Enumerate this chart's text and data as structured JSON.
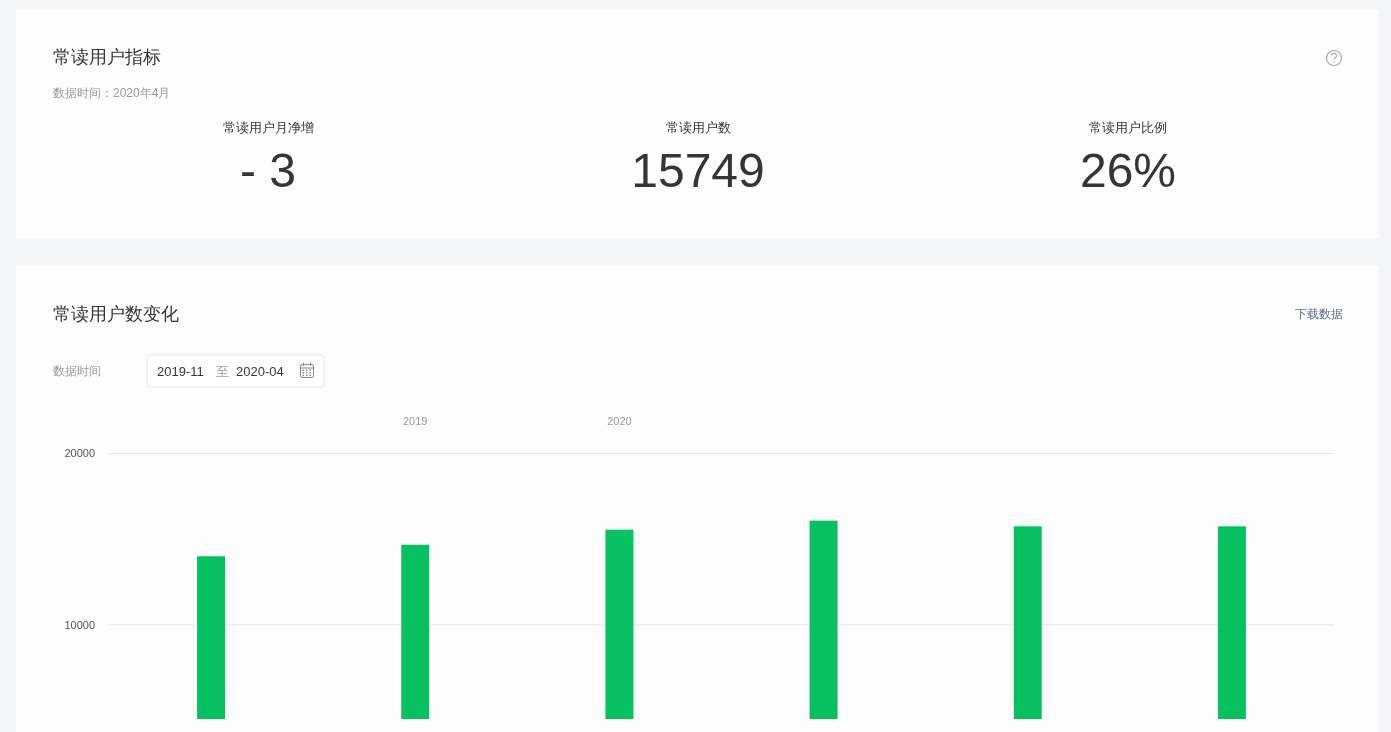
{
  "chart_data": [
    {
      "type": "other",
      "title": "常读用户指标",
      "subtitle": "数据时间：2020年4月",
      "categories": [
        "常读用户月净增",
        "常读用户数",
        "常读用户比例"
      ],
      "value_labels": [
        "- 3",
        "15749",
        "26%"
      ]
    },
    {
      "type": "bar",
      "title": "常读用户数变化",
      "annotations": [
        "下载数据",
        "数据时间",
        "2019-11",
        "至",
        "2020-04"
      ],
      "categories": [
        null,
        "2019",
        "2020",
        null,
        null,
        null
      ],
      "values": [
        14000,
        14670,
        15550,
        16080,
        15750,
        15750
      ],
      "color": "#07c160",
      "ylim": [
        4500,
        20000
      ],
      "yticks": [
        10000,
        20000
      ],
      "grid": "y"
    }
  ]
}
